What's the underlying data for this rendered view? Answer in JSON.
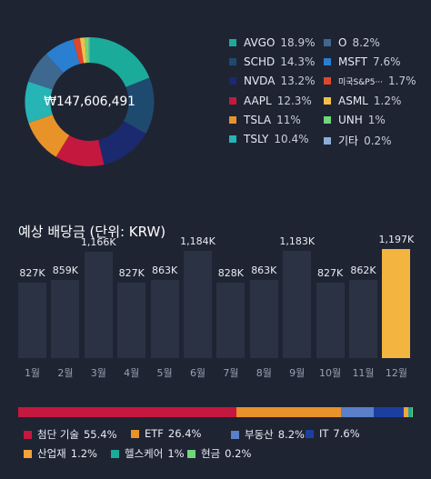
{
  "portfolio": {
    "total": "₩147,606,491",
    "holdings": [
      {
        "name": "AVGO",
        "pct": "18.9%",
        "value": 18.9,
        "color": "#1bab9a"
      },
      {
        "name": "SCHD",
        "pct": "14.3%",
        "value": 14.3,
        "color": "#1f4a70"
      },
      {
        "name": "NVDA",
        "pct": "13.2%",
        "value": 13.2,
        "color": "#1b2a6e"
      },
      {
        "name": "AAPL",
        "pct": "12.3%",
        "value": 12.3,
        "color": "#c4183f"
      },
      {
        "name": "TSLA",
        "pct": "11%",
        "value": 11.0,
        "color": "#e8922a"
      },
      {
        "name": "TSLY",
        "pct": "10.4%",
        "value": 10.4,
        "color": "#26b4b4"
      },
      {
        "name": "O",
        "pct": "8.2%",
        "value": 8.2,
        "color": "#3f6890"
      },
      {
        "name": "MSFT",
        "pct": "7.6%",
        "value": 7.6,
        "color": "#2a7fd0"
      },
      {
        "name": "미국S&P5···",
        "pct": "1.7%",
        "value": 1.7,
        "color": "#e0462e"
      },
      {
        "name": "ASML",
        "pct": "1.2%",
        "value": 1.2,
        "color": "#f2c04a"
      },
      {
        "name": "UNH",
        "pct": "1%",
        "value": 1.0,
        "color": "#6fd67a"
      },
      {
        "name": "기타",
        "pct": "0.2%",
        "value": 0.2,
        "color": "#8aaed8"
      }
    ]
  },
  "dividends": {
    "title": "예상 배당금 (단위: KRW)",
    "chart_data": {
      "type": "bar",
      "categories": [
        "1월",
        "2월",
        "3월",
        "4월",
        "5월",
        "6월",
        "7월",
        "8월",
        "9월",
        "10월",
        "11월",
        "12월"
      ],
      "values": [
        827,
        859,
        1166,
        827,
        863,
        1184,
        828,
        863,
        1183,
        827,
        862,
        1197
      ],
      "value_labels": [
        "827K",
        "859K",
        "1,166K",
        "827K",
        "863K",
        "1,184K",
        "828K",
        "863K",
        "1,183K",
        "827K",
        "862K",
        "1,197K"
      ],
      "unit": "K",
      "highlight_index": 11,
      "bar_color": "#2b3244",
      "highlight_color": "#f3b53f"
    }
  },
  "sectors": [
    {
      "name": "첨단 기술",
      "pct": "55.4%",
      "value": 55.4,
      "color": "#c4183f"
    },
    {
      "name": "ETF",
      "pct": "26.4%",
      "value": 26.4,
      "color": "#e8922a"
    },
    {
      "name": "부동산",
      "pct": "8.2%",
      "value": 8.2,
      "color": "#5b7fc9"
    },
    {
      "name": "IT",
      "pct": "7.6%",
      "value": 7.6,
      "color": "#1b3fa0"
    },
    {
      "name": "산업재",
      "pct": "1.2%",
      "value": 1.2,
      "color": "#f2a33a"
    },
    {
      "name": "헬스케어",
      "pct": "1%",
      "value": 1.0,
      "color": "#1bab9a"
    },
    {
      "name": "현금",
      "pct": "0.2%",
      "value": 0.2,
      "color": "#6fd67a"
    }
  ]
}
